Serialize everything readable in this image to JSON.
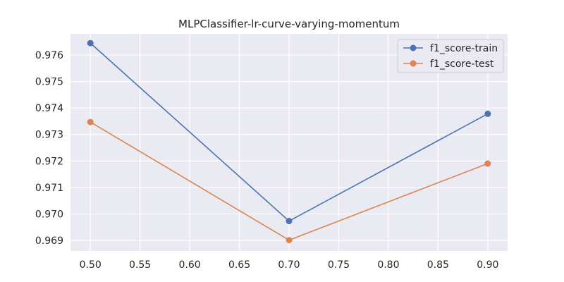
{
  "chart_data": {
    "type": "line",
    "title": "MLPClassifier-lr-curve-varying-momentum",
    "xlabel": "",
    "ylabel": "",
    "x": [
      0.5,
      0.7,
      0.9
    ],
    "series": [
      {
        "name": "f1_score-train",
        "color": "#4c72b0",
        "values": [
          0.97645,
          0.96973,
          0.97378
        ]
      },
      {
        "name": "f1_score-test",
        "color": "#dd8452",
        "values": [
          0.97347,
          0.96901,
          0.9719
        ]
      }
    ],
    "xlim": [
      0.48,
      0.92
    ],
    "ylim": [
      0.9686,
      0.9768
    ],
    "x_ticks": [
      0.5,
      0.55,
      0.6,
      0.65,
      0.7,
      0.75,
      0.8,
      0.85,
      0.9
    ],
    "x_tick_labels": [
      "0.50",
      "0.55",
      "0.60",
      "0.65",
      "0.70",
      "0.75",
      "0.80",
      "0.85",
      "0.90"
    ],
    "y_ticks": [
      0.969,
      0.97,
      0.971,
      0.972,
      0.973,
      0.974,
      0.975,
      0.976
    ],
    "y_tick_labels": [
      "0.969",
      "0.970",
      "0.971",
      "0.972",
      "0.973",
      "0.974",
      "0.975",
      "0.976"
    ],
    "grid": true,
    "legend_position": "top-right"
  }
}
